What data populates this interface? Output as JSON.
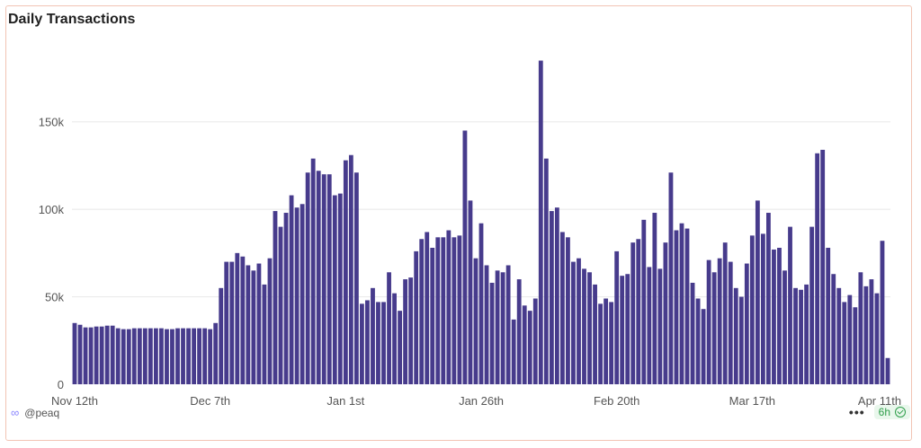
{
  "header": {
    "title": "Daily Transactions"
  },
  "footer": {
    "account": "@peaq",
    "refresh": "6h",
    "more_icon": "more-dots-icon",
    "status_icon": "check-circle-icon"
  },
  "colors": {
    "bar": "#473b8c",
    "grid": "#e8e8e8",
    "accent": "#8a85ff",
    "badge_text": "#2e9e4a"
  },
  "chart_data": {
    "type": "bar",
    "title": "Daily Transactions",
    "xlabel": "",
    "ylabel": "",
    "ylim": [
      0,
      195000
    ],
    "grid": true,
    "y_ticks": [
      {
        "value": 0,
        "label": "0"
      },
      {
        "value": 50000,
        "label": "50k"
      },
      {
        "value": 100000,
        "label": "100k"
      },
      {
        "value": 150000,
        "label": "150k"
      }
    ],
    "x_ticks": [
      {
        "index": 0,
        "label": "Nov 12th"
      },
      {
        "index": 25,
        "label": "Dec 7th"
      },
      {
        "index": 50,
        "label": "Jan 1st"
      },
      {
        "index": 75,
        "label": "Jan 26th"
      },
      {
        "index": 100,
        "label": "Feb 20th"
      },
      {
        "index": 125,
        "label": "Mar 17th"
      },
      {
        "index": 150,
        "label": "Apr 11th"
      }
    ],
    "values": [
      35000,
      34000,
      32500,
      32500,
      33000,
      33000,
      33500,
      33500,
      32000,
      31500,
      31500,
      32000,
      32000,
      32000,
      32000,
      32000,
      32000,
      31500,
      31500,
      32000,
      32000,
      32000,
      32000,
      32000,
      32000,
      31500,
      35000,
      55000,
      70000,
      70000,
      75000,
      73000,
      68000,
      65000,
      69000,
      57000,
      72000,
      99000,
      90000,
      98000,
      108000,
      101000,
      103000,
      121000,
      129000,
      122000,
      120000,
      120000,
      108000,
      109000,
      128000,
      131000,
      121000,
      46000,
      48000,
      55000,
      47000,
      47000,
      64000,
      52000,
      42000,
      60000,
      61000,
      76000,
      83000,
      87000,
      78000,
      84000,
      84000,
      88000,
      84000,
      85000,
      145000,
      105000,
      72000,
      92000,
      68000,
      58000,
      65000,
      64000,
      68000,
      37000,
      60000,
      45000,
      42000,
      49000,
      185000,
      129000,
      99000,
      101000,
      87000,
      84000,
      70000,
      72000,
      66000,
      64000,
      57000,
      46000,
      49000,
      47000,
      76000,
      62000,
      63000,
      81000,
      83000,
      94000,
      67000,
      98000,
      66000,
      81000,
      121000,
      88000,
      92000,
      89000,
      58000,
      49000,
      43000,
      71000,
      64000,
      72000,
      81000,
      70000,
      55000,
      50000,
      69000,
      85000,
      105000,
      86000,
      98000,
      77000,
      78000,
      65000,
      90000,
      55000,
      54000,
      57000,
      90000,
      132000,
      134000,
      78000,
      63000,
      55000,
      47000,
      51000,
      44000,
      64000,
      56000,
      60000,
      52000,
      82000,
      15000
    ]
  }
}
